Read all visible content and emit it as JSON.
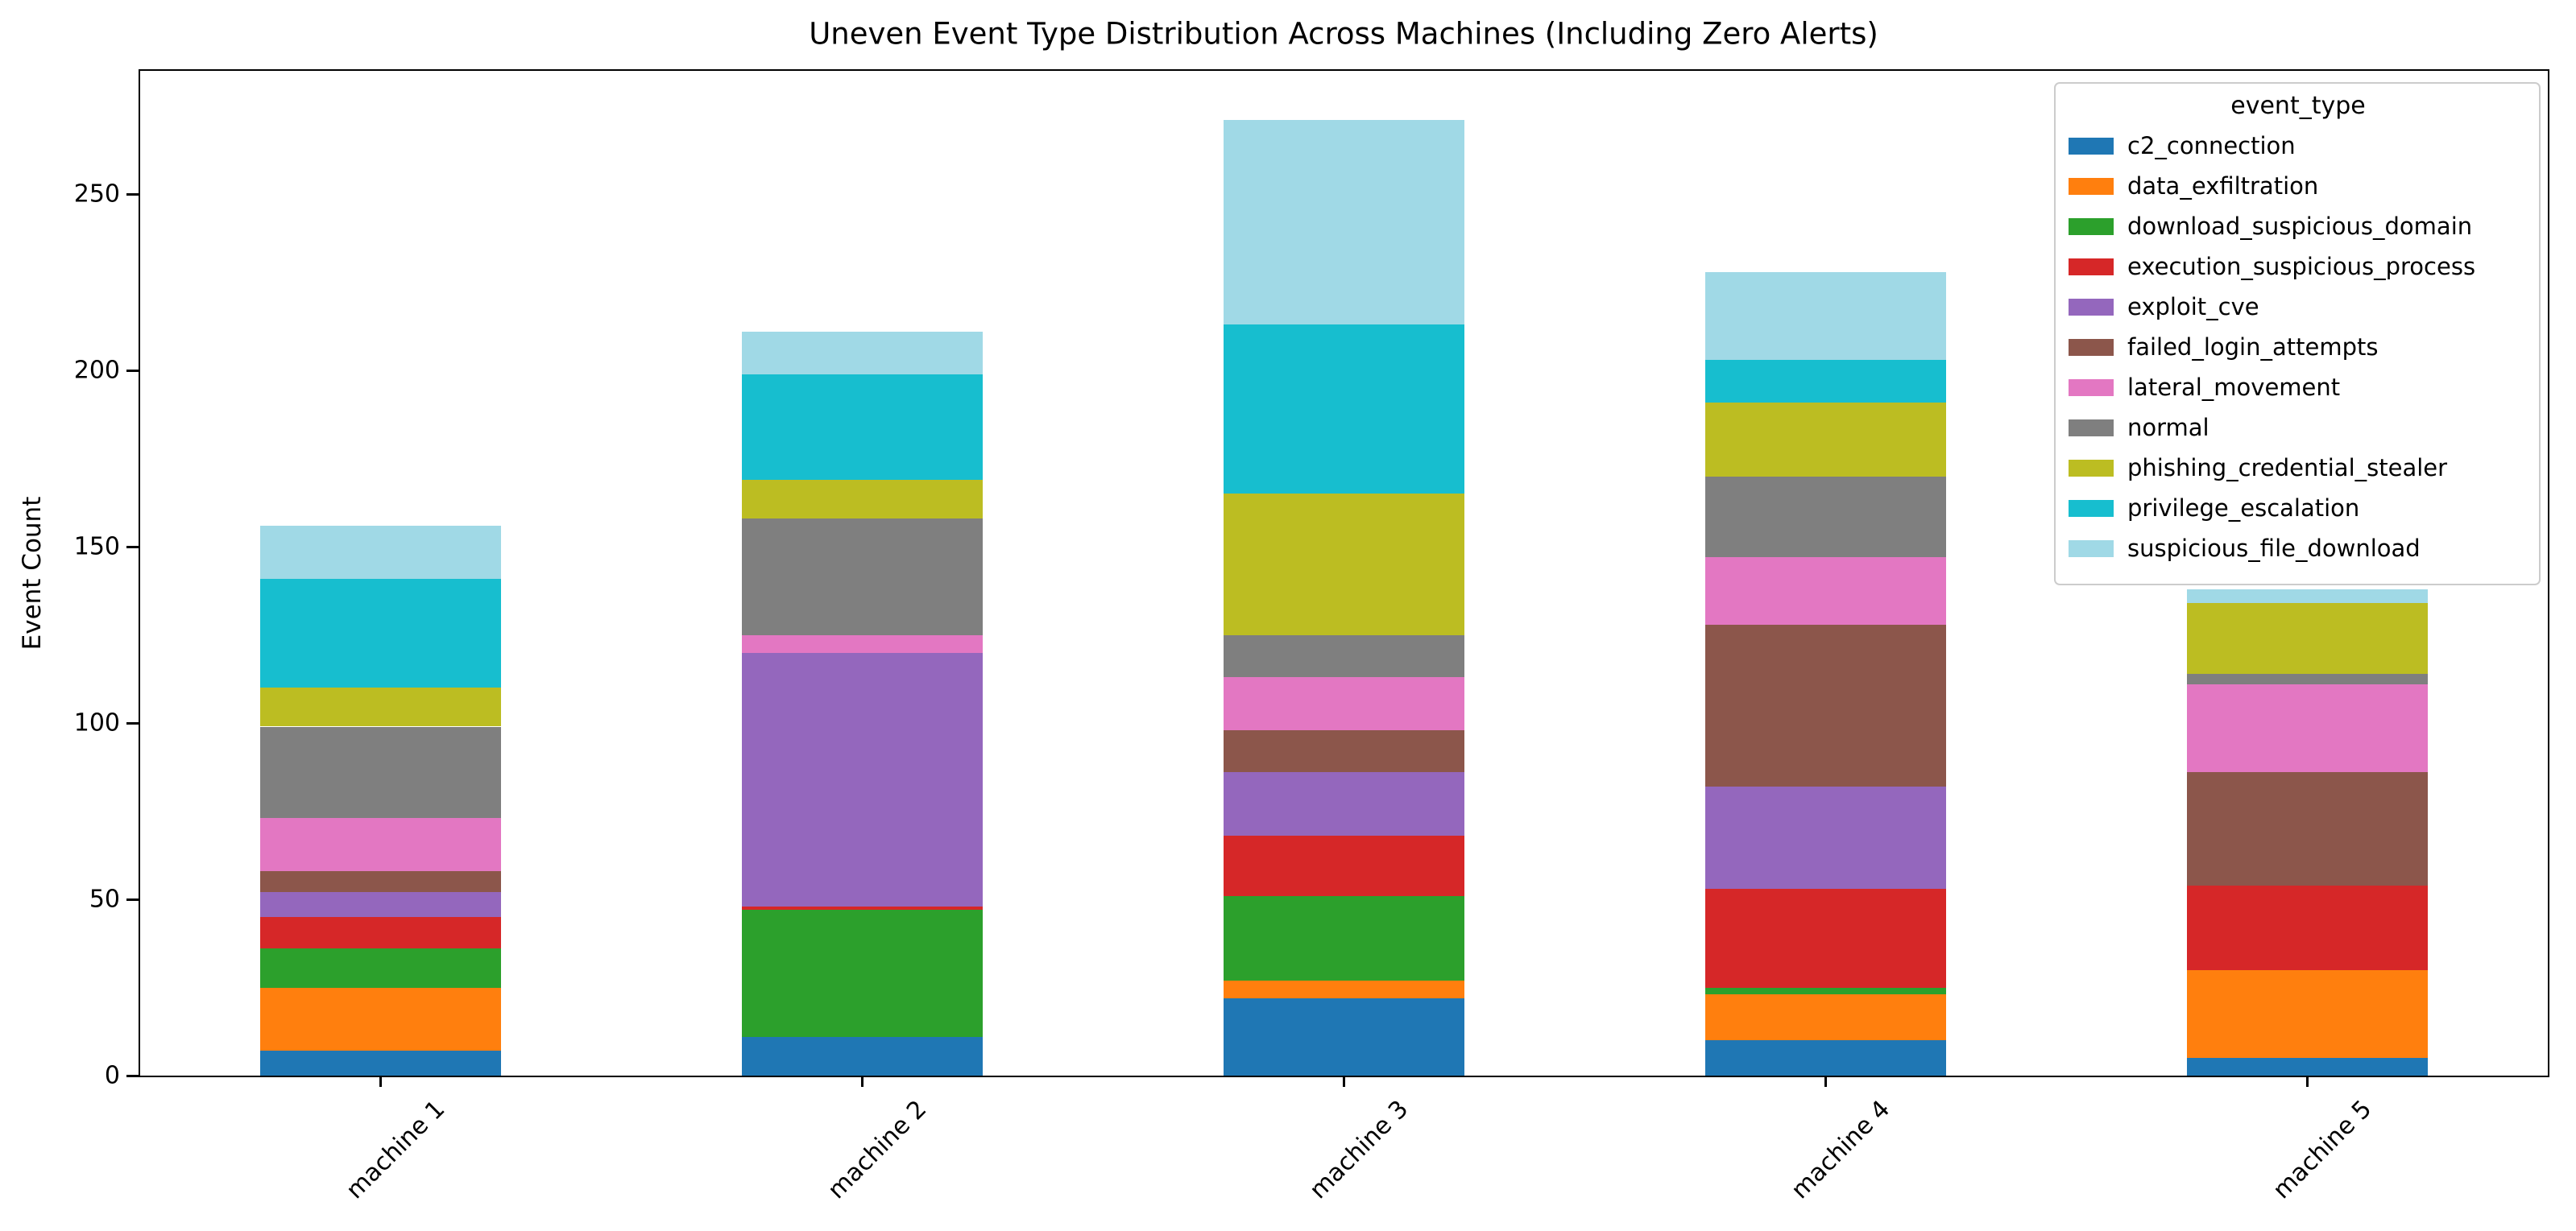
{
  "chart_data": {
    "type": "bar",
    "stacked": true,
    "title": "Uneven Event Type Distribution Across Machines (Including Zero Alerts)",
    "xlabel": "",
    "ylabel": "Event Count",
    "legend_title": "event_type",
    "legend_position": "upper right",
    "grid": false,
    "bar_width_fraction": 0.5,
    "categories": [
      "machine 1",
      "machine 2",
      "machine 3",
      "machine 4",
      "machine 5"
    ],
    "series": [
      {
        "name": "c2_connection",
        "color": "#1f77b4",
        "values": [
          7,
          11,
          22,
          10,
          5
        ]
      },
      {
        "name": "data_exfiltration",
        "color": "#ff7f0e",
        "values": [
          18,
          0,
          5,
          13,
          25
        ]
      },
      {
        "name": "download_suspicious_domain",
        "color": "#2ca02c",
        "values": [
          11,
          36,
          24,
          2,
          0
        ]
      },
      {
        "name": "execution_suspicious_process",
        "color": "#d62728",
        "values": [
          9,
          1,
          17,
          28,
          24
        ]
      },
      {
        "name": "exploit_cve",
        "color": "#9467bd",
        "values": [
          7,
          72,
          18,
          29,
          0
        ]
      },
      {
        "name": "failed_login_attempts",
        "color": "#8c564b",
        "values": [
          6,
          0,
          12,
          46,
          32
        ]
      },
      {
        "name": "lateral_movement",
        "color": "#e377c2",
        "values": [
          15,
          5,
          15,
          19,
          25
        ]
      },
      {
        "name": "normal",
        "color": "#7f7f7f",
        "values": [
          26,
          33,
          12,
          23,
          3
        ]
      },
      {
        "name": "phishing_credential_stealer",
        "color": "#bcbd22",
        "values": [
          11,
          11,
          40,
          21,
          20
        ]
      },
      {
        "name": "privilege_escalation",
        "color": "#17becf",
        "values": [
          31,
          30,
          48,
          12,
          0
        ]
      },
      {
        "name": "suspicious_file_download",
        "color": "#a0d9e6",
        "values": [
          15,
          12,
          58,
          25,
          4
        ]
      }
    ],
    "totals": [
      156,
      211,
      271,
      228,
      138
    ],
    "ylim": [
      0,
      285
    ],
    "yticks": [
      0,
      50,
      100,
      150,
      200,
      250
    ],
    "axis_color": "#000000"
  }
}
